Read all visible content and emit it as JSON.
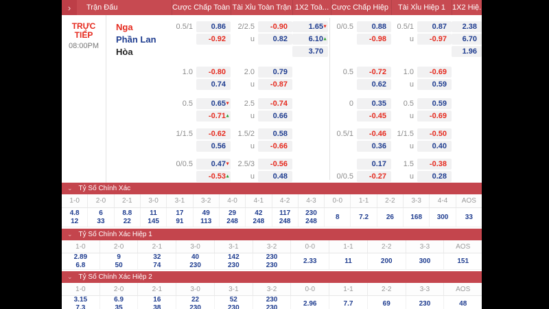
{
  "colors": {
    "topbar_red": "#c74a51",
    "topbar_dark_red": "#bd3e47",
    "section_red": "#c4454d",
    "odds_blue": "#1e3c8f",
    "odds_red": "#e5291d",
    "trend_green": "#2fa033",
    "cell_bg": "#f1f1f2"
  },
  "topbar": {
    "expand_icon": "chevron-right",
    "title": "Trận Đấu",
    "columns": [
      {
        "label": "Cược Chấp Toàn ..."
      },
      {
        "label": "Tài Xỉu Toàn Trận"
      },
      {
        "label": "1X2 Toà..."
      },
      {
        "label": "Cược Chấp Hiệp 1"
      },
      {
        "label": "Tài Xỉu Hiệp 1"
      },
      {
        "label": "1X2 Hiệ..."
      }
    ]
  },
  "match": {
    "status": "TRỰC TIẾP",
    "time": "08:00PM",
    "teams": [
      {
        "name": "Nga",
        "color": "#e5291d"
      },
      {
        "name": "Phần Lan",
        "color": "#1e3c8f"
      },
      {
        "name": "Hòa",
        "color": "#222222"
      }
    ]
  },
  "odds": {
    "blocks": [
      {
        "ft": [
          {
            "hcp": "0.5/1",
            "h": "0.86",
            "ou": "2/2.5",
            "o": "-0.90",
            "x": "1.65",
            "xt": "down"
          },
          {
            "hcp": "",
            "h": "-0.92",
            "ou": "u",
            "o": "0.82",
            "x": "6.10",
            "xt": "up"
          },
          {
            "x": "3.70"
          }
        ],
        "h1": [
          {
            "hcp": "0/0.5",
            "h": "0.88",
            "ou": "0.5/1",
            "o": "0.87",
            "x": "2.38"
          },
          {
            "hcp": "",
            "h": "-0.98",
            "ou": "u",
            "o": "-0.97",
            "x": "6.70"
          },
          {
            "x": "1.96"
          }
        ]
      },
      {
        "ft": [
          {
            "hcp": "1.0",
            "h": "-0.80",
            "ou": "2.0",
            "o": "0.79"
          },
          {
            "hcp": "",
            "h": "0.74",
            "ou": "u",
            "o": "-0.87"
          }
        ],
        "h1": [
          {
            "hcp": "0.5",
            "h": "-0.72",
            "ou": "1.0",
            "o": "-0.69"
          },
          {
            "hcp": "",
            "h": "0.62",
            "ou": "u",
            "o": "0.59"
          }
        ]
      },
      {
        "ft": [
          {
            "hcp": "0.5",
            "h": "0.65",
            "ht": "down",
            "ou": "2.5",
            "o": "-0.74"
          },
          {
            "hcp": "",
            "h": "-0.71",
            "ht": "up",
            "ou": "u",
            "o": "0.66"
          }
        ],
        "h1": [
          {
            "hcp": "0",
            "h": "0.35",
            "ou": "0.5",
            "o": "0.59"
          },
          {
            "hcp": "",
            "h": "-0.45",
            "ou": "u",
            "o": "-0.69"
          }
        ]
      },
      {
        "ft": [
          {
            "hcp": "1/1.5",
            "h": "-0.62",
            "ou": "1.5/2",
            "o": "0.58"
          },
          {
            "hcp": "",
            "h": "0.56",
            "ou": "u",
            "o": "-0.66"
          }
        ],
        "h1": [
          {
            "hcp": "0.5/1",
            "h": "-0.46",
            "ou": "1/1.5",
            "o": "-0.50"
          },
          {
            "hcp": "",
            "h": "0.36",
            "ou": "u",
            "o": "0.40"
          }
        ]
      },
      {
        "ft": [
          {
            "hcp": "0/0.5",
            "h": "0.47",
            "ht": "down",
            "ou": "2.5/3",
            "o": "-0.56"
          },
          {
            "hcp": "",
            "h": "-0.53",
            "ht": "up",
            "ou": "u",
            "o": "0.48"
          }
        ],
        "h1": [
          {
            "hcp": "",
            "h": "0.17",
            "ou": "1.5",
            "o": "-0.38"
          },
          {
            "hcp": "0/0.5",
            "h": "-0.27",
            "ou": "u",
            "o": "0.28"
          }
        ]
      }
    ]
  },
  "score_sections": [
    {
      "title": "Tỷ Số Chính Xác",
      "pairs": [
        {
          "k": "1-0",
          "a": "4.8",
          "b": "12"
        },
        {
          "k": "2-0",
          "a": "6",
          "b": "33"
        },
        {
          "k": "2-1",
          "a": "8.8",
          "b": "22"
        },
        {
          "k": "3-0",
          "a": "11",
          "b": "145"
        },
        {
          "k": "3-1",
          "a": "17",
          "b": "91"
        },
        {
          "k": "3-2",
          "a": "49",
          "b": "113"
        },
        {
          "k": "4-0",
          "a": "29",
          "b": "248"
        },
        {
          "k": "4-1",
          "a": "42",
          "b": "248"
        },
        {
          "k": "4-2",
          "a": "117",
          "b": "248"
        },
        {
          "k": "4-3",
          "a": "230",
          "b": "248"
        }
      ],
      "singles": [
        {
          "k": "0-0",
          "v": "8"
        },
        {
          "k": "1-1",
          "v": "7.2"
        },
        {
          "k": "2-2",
          "v": "26"
        },
        {
          "k": "3-3",
          "v": "168"
        },
        {
          "k": "4-4",
          "v": "300"
        },
        {
          "k": "AOS",
          "v": "33"
        }
      ]
    },
    {
      "title": "Tỷ Số Chính Xác Hiệp 1",
      "pairs": [
        {
          "k": "1-0",
          "a": "2.89",
          "b": "6.8"
        },
        {
          "k": "2-0",
          "a": "9",
          "b": "50"
        },
        {
          "k": "2-1",
          "a": "32",
          "b": "74"
        },
        {
          "k": "3-0",
          "a": "40",
          "b": "230"
        },
        {
          "k": "3-1",
          "a": "142",
          "b": "230"
        },
        {
          "k": "3-2",
          "a": "230",
          "b": "230"
        }
      ],
      "singles": [
        {
          "k": "0-0",
          "v": "2.33"
        },
        {
          "k": "1-1",
          "v": "11"
        },
        {
          "k": "2-2",
          "v": "200"
        },
        {
          "k": "3-3",
          "v": "300"
        },
        {
          "k": "AOS",
          "v": "151"
        }
      ]
    },
    {
      "title": "Tỷ Số Chính Xác Hiệp 2",
      "pairs": [
        {
          "k": "1-0",
          "a": "3.15",
          "b": "7.3"
        },
        {
          "k": "2-0",
          "a": "6.9",
          "b": "35"
        },
        {
          "k": "2-1",
          "a": "16",
          "b": "38"
        },
        {
          "k": "3-0",
          "a": "22",
          "b": "230"
        },
        {
          "k": "3-1",
          "a": "52",
          "b": "230"
        },
        {
          "k": "3-2",
          "a": "230",
          "b": "230"
        }
      ],
      "singles": [
        {
          "k": "0-0",
          "v": "2.96"
        },
        {
          "k": "1-1",
          "v": "7.7"
        },
        {
          "k": "2-2",
          "v": "69"
        },
        {
          "k": "3-3",
          "v": "230"
        },
        {
          "k": "AOS",
          "v": "48"
        }
      ]
    }
  ]
}
